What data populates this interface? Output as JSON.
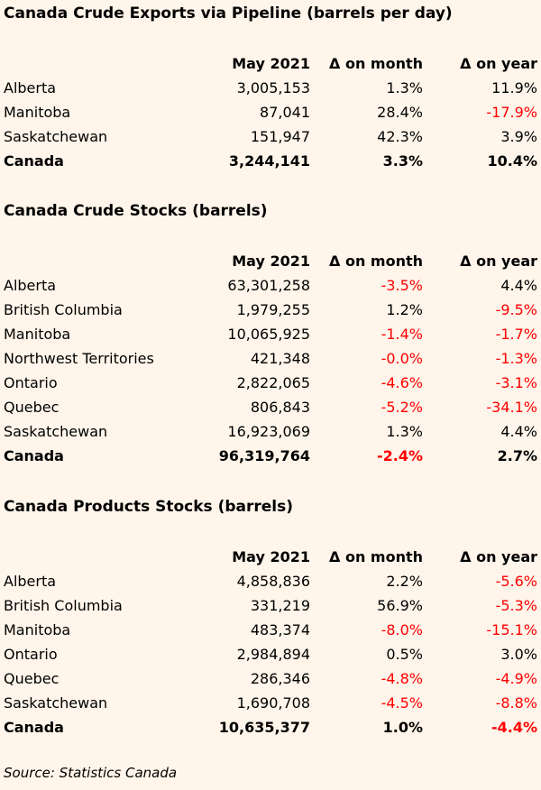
{
  "colors": {
    "background": "#FFF5EA",
    "text": "#000000",
    "negative": "#FF0000"
  },
  "sections": [
    {
      "title": "Canada Crude Exports via Pipeline (barrels per day)",
      "columns": [
        "",
        "May 2021",
        "Δ on month",
        "Δ on year"
      ],
      "rows": [
        {
          "name": "Alberta",
          "value": "3,005,153",
          "mom": "1.3%",
          "yoy": "11.9%"
        },
        {
          "name": "Manitoba",
          "value": "87,041",
          "mom": "28.4%",
          "yoy": "-17.9%"
        },
        {
          "name": "Saskatchewan",
          "value": "151,947",
          "mom": "42.3%",
          "yoy": "3.9%"
        }
      ],
      "total": {
        "name": "Canada",
        "value": "3,244,141",
        "mom": "3.3%",
        "yoy": "10.4%"
      }
    },
    {
      "title": "Canada Crude Stocks (barrels)",
      "columns": [
        "",
        "May 2021",
        "Δ on month",
        "Δ on year"
      ],
      "rows": [
        {
          "name": "Alberta",
          "value": "63,301,258",
          "mom": "-3.5%",
          "yoy": "4.4%"
        },
        {
          "name": "British Columbia",
          "value": "1,979,255",
          "mom": "1.2%",
          "yoy": "-9.5%"
        },
        {
          "name": "Manitoba",
          "value": "10,065,925",
          "mom": "-1.4%",
          "yoy": "-1.7%"
        },
        {
          "name": "Northwest Territories",
          "value": "421,348",
          "mom": "-0.0%",
          "yoy": "-1.3%"
        },
        {
          "name": "Ontario",
          "value": "2,822,065",
          "mom": "-4.6%",
          "yoy": "-3.1%"
        },
        {
          "name": "Quebec",
          "value": "806,843",
          "mom": "-5.2%",
          "yoy": "-34.1%"
        },
        {
          "name": "Saskatchewan",
          "value": "16,923,069",
          "mom": "1.3%",
          "yoy": "4.4%"
        }
      ],
      "total": {
        "name": "Canada",
        "value": "96,319,764",
        "mom": "-2.4%",
        "yoy": "2.7%"
      }
    },
    {
      "title": "Canada Products Stocks (barrels)",
      "columns": [
        "",
        "May 2021",
        "Δ on month",
        "Δ on year"
      ],
      "rows": [
        {
          "name": "Alberta",
          "value": "4,858,836",
          "mom": "2.2%",
          "yoy": "-5.6%"
        },
        {
          "name": "British Columbia",
          "value": "331,219",
          "mom": "56.9%",
          "yoy": "-5.3%"
        },
        {
          "name": "Manitoba",
          "value": "483,374",
          "mom": "-8.0%",
          "yoy": "-15.1%"
        },
        {
          "name": "Ontario",
          "value": "2,984,894",
          "mom": "0.5%",
          "yoy": "3.0%"
        },
        {
          "name": "Quebec",
          "value": "286,346",
          "mom": "-4.8%",
          "yoy": "-4.9%"
        },
        {
          "name": "Saskatchewan",
          "value": "1,690,708",
          "mom": "-4.5%",
          "yoy": "-8.8%"
        }
      ],
      "total": {
        "name": "Canada",
        "value": "10,635,377",
        "mom": "1.0%",
        "yoy": "-4.4%"
      }
    }
  ],
  "source": "Source: Statistics Canada"
}
